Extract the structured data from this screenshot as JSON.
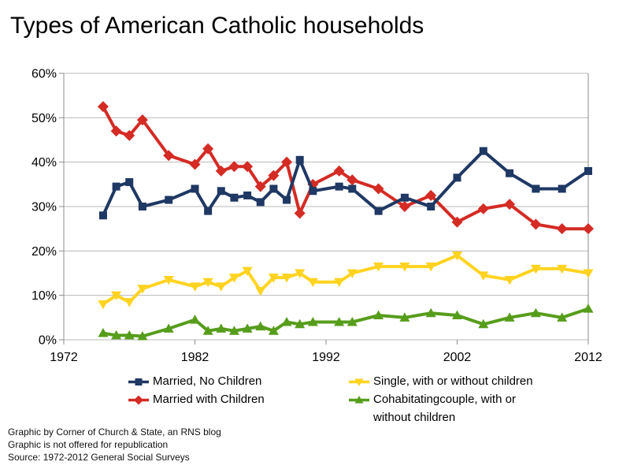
{
  "title": "Types of American Catholic households",
  "chart_data": {
    "type": "line",
    "x": [
      1975,
      1976,
      1977,
      1978,
      1980,
      1982,
      1983,
      1984,
      1985,
      1986,
      1987,
      1988,
      1989,
      1990,
      1991,
      1993,
      1994,
      1996,
      1998,
      2000,
      2002,
      2004,
      2006,
      2008,
      2010,
      2012
    ],
    "series": [
      {
        "name": "Married, No Children",
        "color": "#1F3864",
        "marker": "square",
        "values": [
          28,
          34.5,
          35.5,
          30,
          31.5,
          34,
          29,
          33.5,
          32,
          32.5,
          31,
          34,
          31.5,
          40.5,
          33.5,
          34.5,
          34,
          29,
          32,
          30,
          36.5,
          42.5,
          37.5,
          34,
          34,
          38
        ]
      },
      {
        "name": "Married with Children",
        "color": "#D42B24",
        "marker": "diamond",
        "values": [
          52.5,
          47,
          46,
          49.5,
          41.5,
          39.5,
          43,
          38,
          39,
          39,
          34.5,
          37,
          40,
          28.5,
          35,
          38,
          36,
          34,
          30,
          32.5,
          26.5,
          29.5,
          30.5,
          26,
          25,
          25
        ]
      },
      {
        "name": "Single, with or without children",
        "color": "#FFD320",
        "marker": "triangle-down",
        "values": [
          8,
          10,
          8.5,
          11.5,
          13.5,
          12,
          13,
          12,
          14,
          15.5,
          11,
          14,
          14,
          15,
          13,
          13,
          15,
          16.5,
          16.5,
          16.5,
          19,
          14.5,
          13.5,
          16,
          16,
          15
        ]
      },
      {
        "name": "Cohabitatingcouple, with or without children",
        "color": "#579D1C",
        "marker": "triangle-up",
        "values": [
          1.5,
          1,
          1,
          0.8,
          2.5,
          4.5,
          2,
          2.5,
          2,
          2.5,
          3,
          2,
          4,
          3.5,
          4,
          4,
          4,
          5.5,
          5,
          6,
          5.5,
          3.5,
          5,
          6,
          5,
          7
        ]
      }
    ],
    "title": "Types of American Catholic households",
    "xlabel": "",
    "ylabel": "",
    "xlim": [
      1972,
      2012
    ],
    "ylim": [
      0,
      60
    ],
    "x_tick_labels": [
      "1972",
      "1982",
      "1992",
      "2002",
      "2012"
    ],
    "x_tick_years": [
      1972,
      1982,
      1992,
      2002,
      2012
    ],
    "y_tick_labels": [
      "0%",
      "10%",
      "20%",
      "30%",
      "40%",
      "50%",
      "60%"
    ],
    "y_tick_values": [
      0,
      10,
      20,
      30,
      40,
      50,
      60
    ],
    "grid": "horizontal",
    "legend_position": "bottom"
  },
  "legend": {
    "column1": [
      {
        "series": 0,
        "lines": [
          "Married, No Children"
        ]
      },
      {
        "series": 1,
        "lines": [
          "Married with Children"
        ]
      }
    ],
    "column2": [
      {
        "series": 2,
        "lines": [
          "Single, with or without children"
        ]
      },
      {
        "series": 3,
        "lines": [
          "Cohabitatingcouple, with or",
          "without children"
        ]
      }
    ]
  },
  "footer": [
    "Graphic by Corner of Church & State, an RNS blog",
    "Graphic is not offered for republication",
    "Source: 1972-2012 General Social Surveys"
  ],
  "colors": {
    "gridline": "#b8b8b8",
    "axis": "#8c8c8c",
    "text": "#000000",
    "background": "#ffffff"
  }
}
